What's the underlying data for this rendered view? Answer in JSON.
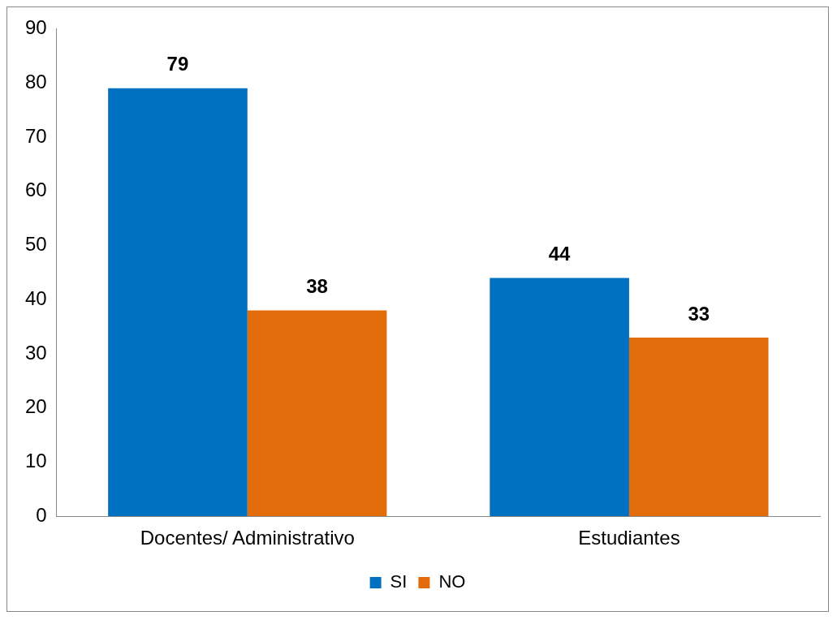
{
  "chart_data": {
    "type": "bar",
    "categories": [
      "Docentes/ Administrativo",
      "Estudiantes"
    ],
    "series": [
      {
        "name": "SI",
        "color": "#0070c0",
        "values": [
          79,
          44
        ]
      },
      {
        "name": "NO",
        "color": "#e36c0a",
        "values": [
          38,
          33
        ]
      }
    ],
    "ylim": [
      0,
      90
    ],
    "yticks": [
      0,
      10,
      20,
      30,
      40,
      50,
      60,
      70,
      80,
      90
    ],
    "grid": false,
    "legend": "bottom",
    "data_labels": true
  }
}
